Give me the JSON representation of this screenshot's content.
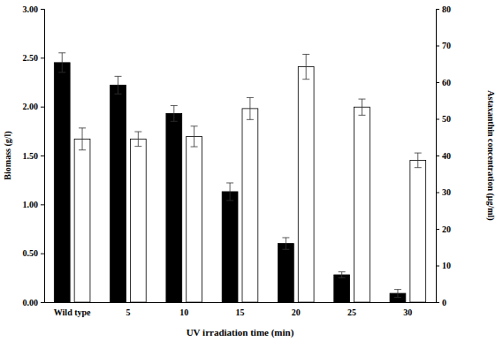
{
  "chart_data": {
    "type": "bar",
    "x_label": "UV irradiation time (min)",
    "y_label": "Biomass (g/l)",
    "y2_label": "Astaxanthin concentration (μg/ml)",
    "categories": [
      "Wild type",
      "5",
      "10",
      "15",
      "20",
      "25",
      "30"
    ],
    "series": [
      {
        "color": "#000000",
        "values": [
          2.45,
          2.22,
          1.93,
          1.13,
          0.6,
          0.28,
          0.09
        ],
        "error": [
          0.1,
          0.09,
          0.08,
          0.09,
          0.06,
          0.03,
          0.04
        ]
      },
      {
        "color": "#ffffff",
        "axis": "y2",
        "values": [
          44.5,
          44.5,
          45.2,
          52.8,
          64.2,
          53.2,
          38.7
        ],
        "error": [
          3.0,
          2.0,
          2.8,
          3.0,
          3.4,
          2.2,
          2.0
        ]
      }
    ],
    "ylim": [
      0,
      3
    ],
    "yticks": [
      {
        "value": 0,
        "label": "0.00"
      },
      {
        "value": 0.5,
        "label": "0.50"
      },
      {
        "value": 1,
        "label": "1.00"
      },
      {
        "value": 1.5,
        "label": "1.50"
      },
      {
        "value": 2,
        "label": "2.00"
      },
      {
        "value": 2.5,
        "label": "2.50"
      },
      {
        "value": 3,
        "label": "3.00"
      }
    ],
    "y2lim": [
      0,
      80
    ],
    "y2ticks": [
      0,
      10,
      20,
      30,
      40,
      50,
      60,
      70,
      80
    ],
    "grid": false
  }
}
